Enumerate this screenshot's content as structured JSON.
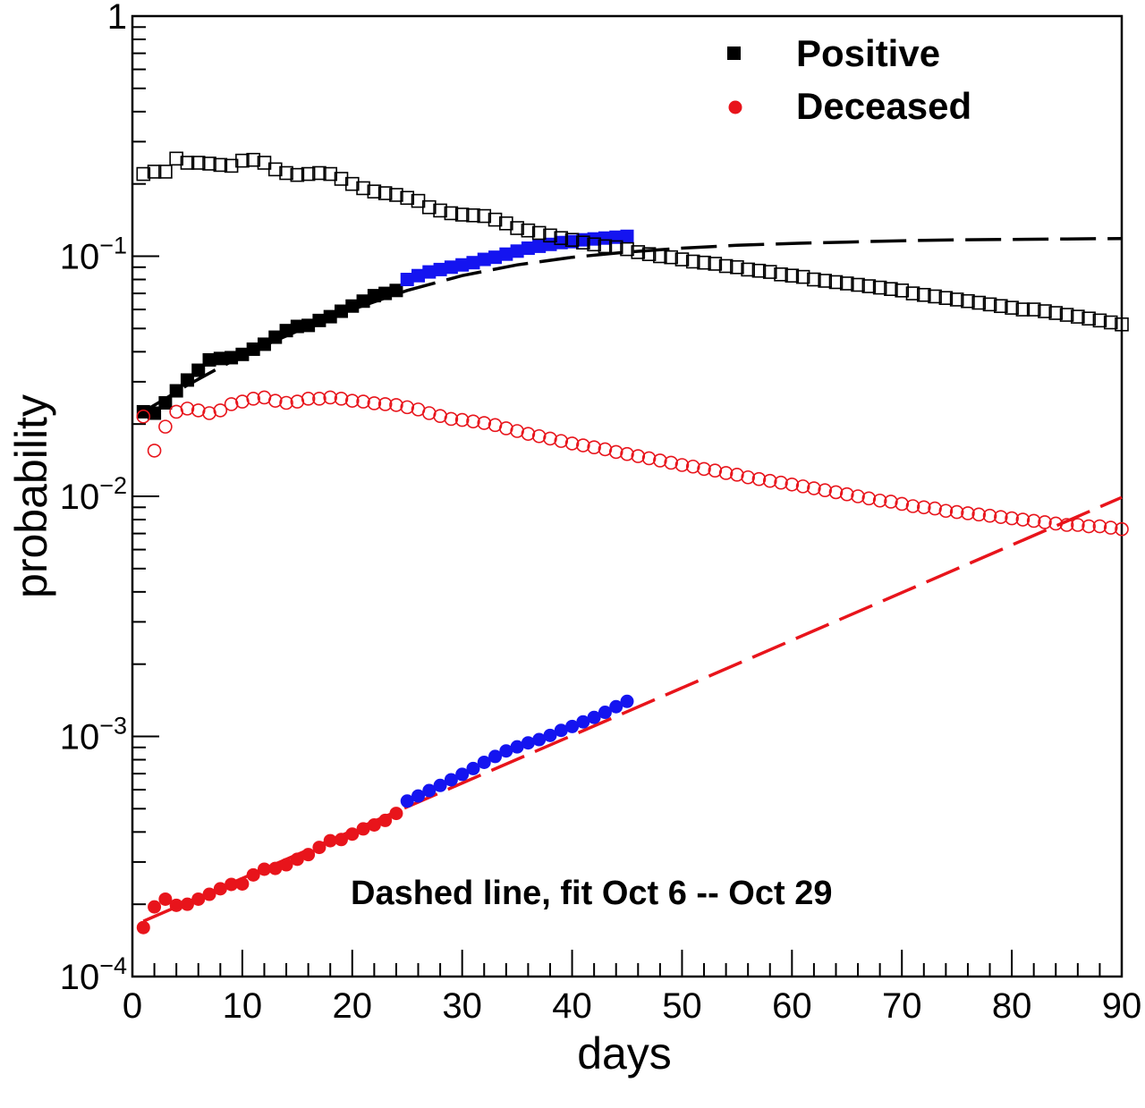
{
  "chart_data": {
    "type": "scatter",
    "title": "",
    "xlabel": "days",
    "ylabel": "probability",
    "xlim": [
      0,
      90
    ],
    "ylim": [
      0.0001,
      1
    ],
    "yscale": "log",
    "grid": false,
    "legend_placement": "top-right",
    "x_ticks": [
      "0",
      "10",
      "20",
      "30",
      "40",
      "50",
      "60",
      "70",
      "80",
      "90"
    ],
    "y_ticks": [
      {
        "base": "",
        "exp": "",
        "text": "1",
        "value": 1
      },
      {
        "base": "10",
        "exp": "−1",
        "value": 0.1
      },
      {
        "base": "10",
        "exp": "−2",
        "value": 0.01
      },
      {
        "base": "10",
        "exp": "−3",
        "value": 0.001
      },
      {
        "base": "10",
        "exp": "−4",
        "value": 0.0001
      }
    ],
    "annotation": "Dashed line, fit Oct 6 -- Oct 29",
    "colors": {
      "black": "#000000",
      "red": "#e8141b",
      "blue": "#1414f0"
    },
    "legend": [
      {
        "name": "Positive",
        "marker": "filled-square",
        "color": "#000000"
      },
      {
        "name": "Deceased",
        "marker": "filled-circle",
        "color": "#e8141b"
      }
    ],
    "series": [
      {
        "name": "Positive",
        "marker": "filled-square",
        "color": "#000000",
        "x": [
          1,
          2,
          3,
          4,
          5,
          6,
          7,
          8,
          9,
          10,
          11,
          12,
          13,
          14,
          15,
          16,
          17,
          18,
          19,
          20,
          21,
          22,
          23,
          24
        ],
        "y": [
          0.0225,
          0.0222,
          0.0245,
          0.0275,
          0.0305,
          0.0335,
          0.037,
          0.0375,
          0.0378,
          0.039,
          0.041,
          0.043,
          0.046,
          0.049,
          0.051,
          0.0515,
          0.054,
          0.056,
          0.059,
          0.062,
          0.065,
          0.0685,
          0.07,
          0.072
        ]
      },
      {
        "name": "Positive fit window",
        "marker": "filled-square",
        "color": "#1414f0",
        "x": [
          25,
          26,
          27,
          28,
          29,
          30,
          31,
          32,
          33,
          34,
          35,
          36,
          37,
          38,
          39,
          40,
          41,
          42,
          43,
          44,
          45
        ],
        "y": [
          0.08,
          0.083,
          0.086,
          0.088,
          0.09,
          0.092,
          0.094,
          0.097,
          0.099,
          0.102,
          0.105,
          0.108,
          0.11,
          0.112,
          0.114,
          0.115,
          0.117,
          0.118,
          0.119,
          0.12,
          0.121
        ]
      },
      {
        "name": "Positive open",
        "marker": "open-square",
        "color": "#000000",
        "x": [
          1,
          2,
          3,
          4,
          5,
          6,
          7,
          8,
          9,
          10,
          11,
          12,
          13,
          14,
          15,
          16,
          17,
          18,
          19,
          20,
          21,
          22,
          23,
          24,
          25,
          26,
          27,
          28,
          29,
          30,
          31,
          32,
          33,
          34,
          35,
          36,
          37,
          38,
          39,
          40,
          41,
          42,
          43,
          44,
          45,
          46,
          47,
          48,
          49,
          50,
          51,
          52,
          53,
          54,
          55,
          56,
          57,
          58,
          59,
          60,
          61,
          62,
          63,
          64,
          65,
          66,
          67,
          68,
          69,
          70,
          71,
          72,
          73,
          74,
          75,
          76,
          77,
          78,
          79,
          80,
          81,
          82,
          83,
          84,
          85,
          86,
          87,
          88,
          89,
          90
        ],
        "y": [
          0.22,
          0.225,
          0.225,
          0.255,
          0.245,
          0.245,
          0.243,
          0.24,
          0.238,
          0.25,
          0.252,
          0.245,
          0.23,
          0.222,
          0.218,
          0.22,
          0.222,
          0.22,
          0.21,
          0.2,
          0.192,
          0.186,
          0.183,
          0.18,
          0.175,
          0.17,
          0.16,
          0.155,
          0.151,
          0.149,
          0.148,
          0.147,
          0.142,
          0.137,
          0.131,
          0.128,
          0.125,
          0.122,
          0.119,
          0.117,
          0.114,
          0.112,
          0.11,
          0.109,
          0.107,
          0.104,
          0.102,
          0.1,
          0.099,
          0.097,
          0.095,
          0.094,
          0.093,
          0.091,
          0.09,
          0.088,
          0.087,
          0.086,
          0.084,
          0.083,
          0.082,
          0.08,
          0.079,
          0.078,
          0.077,
          0.076,
          0.075,
          0.074,
          0.073,
          0.072,
          0.07,
          0.069,
          0.068,
          0.067,
          0.066,
          0.065,
          0.064,
          0.063,
          0.062,
          0.061,
          0.06,
          0.06,
          0.059,
          0.058,
          0.057,
          0.056,
          0.055,
          0.054,
          0.053,
          0.052
        ]
      },
      {
        "name": "Deceased",
        "marker": "filled-circle",
        "color": "#e8141b",
        "x": [
          1,
          2,
          3,
          4,
          5,
          6,
          7,
          8,
          9,
          10,
          11,
          12,
          13,
          14,
          15,
          16,
          17,
          18,
          19,
          20,
          21,
          22,
          23,
          24
        ],
        "y": [
          0.00016,
          0.000195,
          0.00021,
          0.000198,
          0.0002,
          0.00021,
          0.00022,
          0.000232,
          0.000242,
          0.000243,
          0.000265,
          0.00028,
          0.000282,
          0.000292,
          0.000308,
          0.000322,
          0.000345,
          0.000368,
          0.000372,
          0.000392,
          0.000412,
          0.000428,
          0.000447,
          0.000478
        ]
      },
      {
        "name": "Deceased fit window",
        "marker": "filled-circle",
        "color": "#1414f0",
        "x": [
          25,
          26,
          27,
          28,
          29,
          30,
          31,
          32,
          33,
          34,
          35,
          36,
          37,
          38,
          39,
          40,
          41,
          42,
          43,
          44,
          45
        ],
        "y": [
          0.000538,
          0.000565,
          0.000595,
          0.000625,
          0.00066,
          0.000695,
          0.000735,
          0.00078,
          0.000825,
          0.00087,
          0.000905,
          0.00094,
          0.00097,
          0.00101,
          0.00106,
          0.0011,
          0.00115,
          0.0012,
          0.00126,
          0.00133,
          0.0014
        ]
      },
      {
        "name": "Deceased open",
        "marker": "open-circle",
        "color": "#e8141b",
        "x": [
          1,
          2,
          3,
          4,
          5,
          6,
          7,
          8,
          9,
          10,
          11,
          12,
          13,
          14,
          15,
          16,
          17,
          18,
          19,
          20,
          21,
          22,
          23,
          24,
          25,
          26,
          27,
          28,
          29,
          30,
          31,
          32,
          33,
          34,
          35,
          36,
          37,
          38,
          39,
          40,
          41,
          42,
          43,
          44,
          45,
          46,
          47,
          48,
          49,
          50,
          51,
          52,
          53,
          54,
          55,
          56,
          57,
          58,
          59,
          60,
          61,
          62,
          63,
          64,
          65,
          66,
          67,
          68,
          69,
          70,
          71,
          72,
          73,
          74,
          75,
          76,
          77,
          78,
          79,
          80,
          81,
          82,
          83,
          84,
          85,
          86,
          87,
          88,
          89,
          90
        ],
        "y": [
          0.0215,
          0.0155,
          0.0195,
          0.0225,
          0.0232,
          0.0228,
          0.0222,
          0.0228,
          0.0242,
          0.0248,
          0.0255,
          0.0258,
          0.025,
          0.0245,
          0.0248,
          0.0255,
          0.0255,
          0.0258,
          0.0255,
          0.025,
          0.0248,
          0.0244,
          0.0242,
          0.024,
          0.0235,
          0.023,
          0.0222,
          0.0216,
          0.021,
          0.0208,
          0.0205,
          0.0202,
          0.0198,
          0.0192,
          0.0187,
          0.0182,
          0.0178,
          0.0174,
          0.017,
          0.0166,
          0.0163,
          0.016,
          0.0157,
          0.0153,
          0.015,
          0.0147,
          0.0144,
          0.0141,
          0.0138,
          0.0135,
          0.0133,
          0.013,
          0.0128,
          0.0125,
          0.0123,
          0.012,
          0.0118,
          0.0116,
          0.0114,
          0.0112,
          0.011,
          0.0108,
          0.0106,
          0.0104,
          0.0102,
          0.01,
          0.0098,
          0.0096,
          0.0095,
          0.0093,
          0.0091,
          0.009,
          0.0089,
          0.0087,
          0.0086,
          0.0085,
          0.0084,
          0.0083,
          0.0082,
          0.0081,
          0.008,
          0.0079,
          0.0078,
          0.0077,
          0.0076,
          0.0076,
          0.0075,
          0.0075,
          0.0074,
          0.0073
        ]
      }
    ],
    "fit_lines": [
      {
        "name": "Positive fit",
        "style": "dashed",
        "color": "#000000",
        "x": [
          1,
          3,
          5,
          8,
          12,
          16,
          20,
          25,
          30,
          35,
          40,
          45,
          50,
          55,
          60,
          65,
          70,
          75,
          80,
          85,
          90
        ],
        "y": [
          0.0225,
          0.0255,
          0.029,
          0.0345,
          0.0425,
          0.051,
          0.06,
          0.072,
          0.083,
          0.092,
          0.099,
          0.104,
          0.108,
          0.111,
          0.113,
          0.1145,
          0.116,
          0.117,
          0.1175,
          0.118,
          0.1185
        ]
      },
      {
        "name": "Deceased fit",
        "style": "dashed",
        "color": "#e8141b",
        "x": [
          1,
          90
        ],
        "y": [
          0.00017,
          0.0099
        ]
      }
    ]
  }
}
